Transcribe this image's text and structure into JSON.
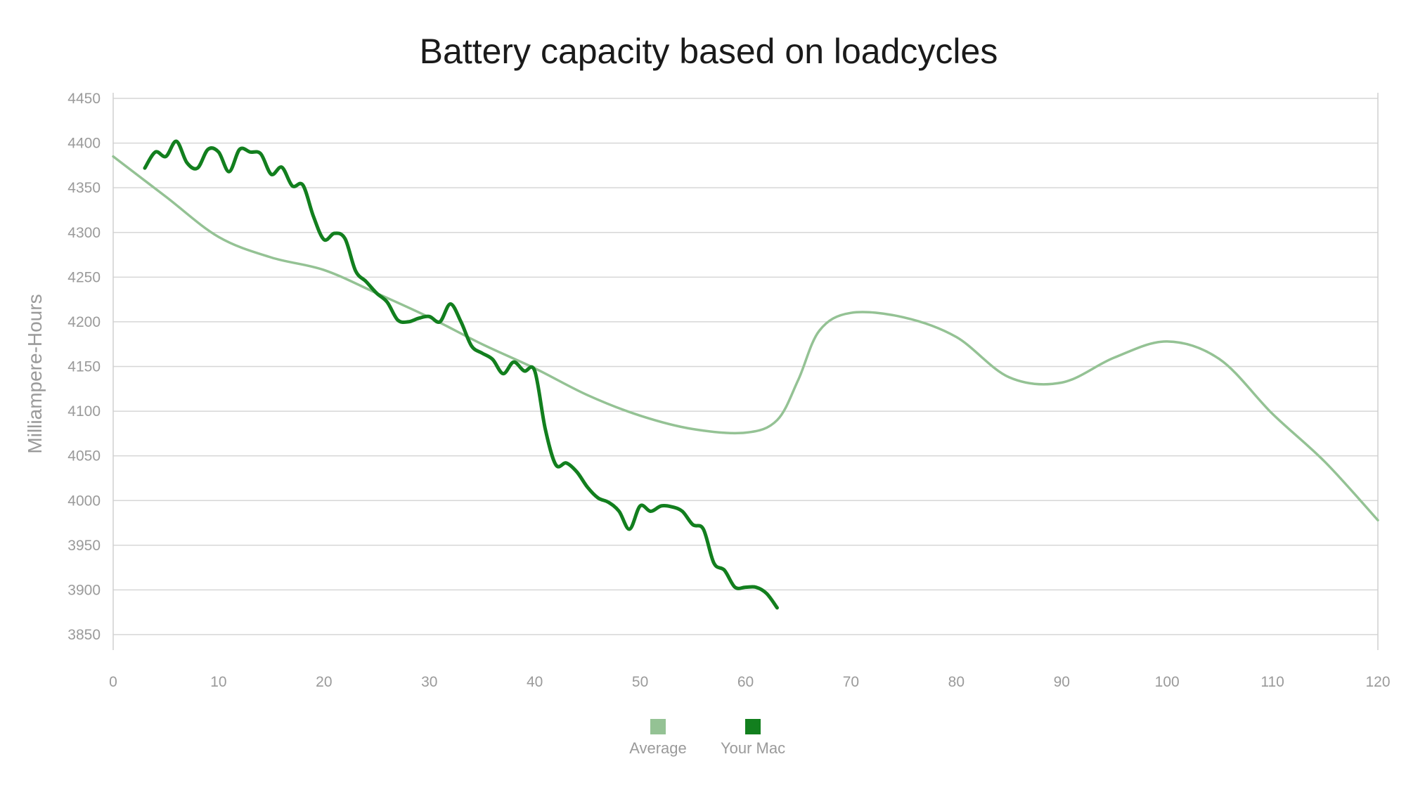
{
  "chart_data": {
    "type": "line",
    "title": "Battery capacity based on loadcycles",
    "xlabel": "",
    "ylabel": "Milliampere-Hours",
    "xlim": [
      0,
      120
    ],
    "ylim": [
      3850,
      4450
    ],
    "xticks": [
      0,
      10,
      20,
      30,
      40,
      50,
      60,
      70,
      80,
      90,
      100,
      110,
      120
    ],
    "yticks": [
      4450,
      4400,
      4350,
      4300,
      4250,
      4200,
      4150,
      4100,
      4050,
      4000,
      3950,
      3900,
      3850
    ],
    "grid": true,
    "legend_position": "bottom-center",
    "series": [
      {
        "name": "Average",
        "color": "#94c294",
        "x": [
          0,
          5,
          10,
          15,
          20,
          25,
          30,
          35,
          40,
          45,
          50,
          55,
          60,
          63,
          65,
          67,
          70,
          75,
          80,
          85,
          90,
          95,
          100,
          105,
          110,
          115,
          120
        ],
        "y": [
          4385,
          4340,
          4295,
          4272,
          4258,
          4232,
          4205,
          4175,
          4148,
          4118,
          4095,
          4080,
          4076,
          4090,
          4135,
          4190,
          4210,
          4205,
          4183,
          4138,
          4132,
          4160,
          4178,
          4158,
          4097,
          4043,
          3978
        ]
      },
      {
        "name": "Your Mac",
        "color": "#127f1e",
        "x": [
          3,
          4,
          5,
          6,
          7,
          8,
          9,
          10,
          11,
          12,
          13,
          14,
          15,
          16,
          17,
          18,
          19,
          20,
          21,
          22,
          23,
          24,
          25,
          26,
          27,
          28,
          29,
          30,
          31,
          32,
          33,
          34,
          35,
          36,
          37,
          38,
          39,
          40,
          41,
          42,
          43,
          44,
          45,
          46,
          47,
          48,
          49,
          50,
          51,
          52,
          53,
          54,
          55,
          56,
          57,
          58,
          59,
          60,
          61,
          62,
          63
        ],
        "y": [
          4372,
          4390,
          4385,
          4402,
          4378,
          4372,
          4393,
          4390,
          4368,
          4393,
          4390,
          4388,
          4365,
          4373,
          4352,
          4353,
          4318,
          4292,
          4299,
          4293,
          4257,
          4245,
          4232,
          4222,
          4202,
          4200,
          4204,
          4206,
          4200,
          4220,
          4200,
          4173,
          4165,
          4158,
          4142,
          4155,
          4145,
          4145,
          4080,
          4040,
          4042,
          4032,
          4015,
          4003,
          3998,
          3988,
          3968,
          3994,
          3988,
          3994,
          3993,
          3988,
          3973,
          3968,
          3930,
          3922,
          3903,
          3903,
          3903,
          3896,
          3880
        ]
      }
    ]
  }
}
